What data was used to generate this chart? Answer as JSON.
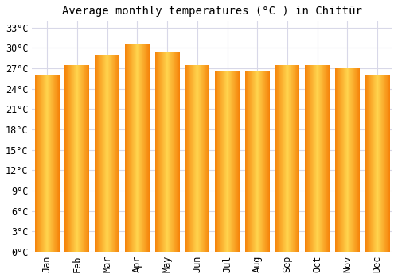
{
  "title": "Average monthly temperatures (°C ) in Chittūr",
  "months": [
    "Jan",
    "Feb",
    "Mar",
    "Apr",
    "May",
    "Jun",
    "Jul",
    "Aug",
    "Sep",
    "Oct",
    "Nov",
    "Dec"
  ],
  "values": [
    26.0,
    27.5,
    29.0,
    30.5,
    29.5,
    27.5,
    26.5,
    26.5,
    27.5,
    27.5,
    27.0,
    26.0
  ],
  "bar_color_center": "#FFD44E",
  "bar_color_edge": "#F5830A",
  "background_color": "#FFFFFF",
  "grid_color": "#D8D8E8",
  "ylim": [
    0,
    34
  ],
  "yticks": [
    0,
    3,
    6,
    9,
    12,
    15,
    18,
    21,
    24,
    27,
    30,
    33
  ],
  "title_fontsize": 10,
  "tick_fontsize": 8.5,
  "bar_width": 0.82
}
